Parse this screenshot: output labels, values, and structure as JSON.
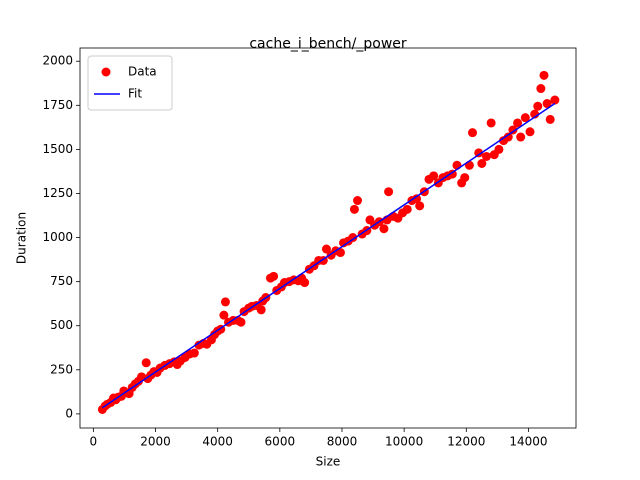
{
  "chart_data": {
    "type": "scatter",
    "title": "cache_i_bench/_power",
    "x_label": "Size",
    "y_label": "Duration",
    "xlim": [
      -430,
      15530
    ],
    "ylim": [
      -80,
      2075
    ],
    "xticks": [
      0,
      2000,
      4000,
      6000,
      8000,
      10000,
      12000,
      14000
    ],
    "yticks": [
      0,
      250,
      500,
      750,
      1000,
      1250,
      1500,
      1750,
      2000
    ],
    "legend": "upper left",
    "series": [
      {
        "name": "Data",
        "type": "scatter",
        "color": "#ff0000",
        "x": [
          290,
          380,
          450,
          560,
          650,
          720,
          800,
          900,
          980,
          1050,
          1150,
          1250,
          1350,
          1450,
          1550,
          1700,
          1750,
          1850,
          1950,
          2050,
          2150,
          2300,
          2450,
          2600,
          2700,
          2800,
          2950,
          3100,
          3250,
          3400,
          3550,
          3650,
          3800,
          3900,
          4000,
          4100,
          4200,
          4250,
          4350,
          4500,
          4650,
          4750,
          4850,
          5000,
          5100,
          5250,
          5400,
          5450,
          5550,
          5700,
          5800,
          5900,
          6050,
          6150,
          6300,
          6450,
          6600,
          6700,
          6800,
          6950,
          7100,
          7250,
          7400,
          7500,
          7650,
          7800,
          7950,
          8050,
          8200,
          8350,
          8400,
          8500,
          8650,
          8800,
          8900,
          9050,
          9200,
          9350,
          9450,
          9500,
          9650,
          9800,
          9950,
          10100,
          10250,
          10400,
          10500,
          10650,
          10800,
          10950,
          11100,
          11250,
          11400,
          11550,
          11700,
          11850,
          11950,
          12100,
          12200,
          12400,
          12500,
          12650,
          12800,
          12900,
          13050,
          13200,
          13350,
          13500,
          13650,
          13750,
          13900,
          14050,
          14200,
          14300,
          14400,
          14500,
          14600,
          14700,
          14850
        ],
        "values": [
          25,
          45,
          55,
          65,
          90,
          80,
          95,
          100,
          130,
          120,
          115,
          150,
          170,
          185,
          210,
          290,
          200,
          220,
          240,
          235,
          260,
          275,
          285,
          295,
          280,
          300,
          320,
          340,
          345,
          390,
          400,
          395,
          420,
          450,
          470,
          480,
          560,
          635,
          520,
          530,
          530,
          520,
          580,
          600,
          610,
          615,
          590,
          640,
          660,
          770,
          780,
          700,
          720,
          745,
          750,
          760,
          755,
          770,
          745,
          820,
          840,
          870,
          870,
          935,
          900,
          925,
          915,
          970,
          980,
          1000,
          1160,
          1210,
          1020,
          1040,
          1100,
          1070,
          1090,
          1050,
          1100,
          1260,
          1120,
          1110,
          1140,
          1160,
          1210,
          1220,
          1180,
          1260,
          1330,
          1350,
          1310,
          1340,
          1350,
          1360,
          1410,
          1310,
          1340,
          1410,
          1595,
          1480,
          1420,
          1460,
          1650,
          1470,
          1500,
          1550,
          1570,
          1610,
          1650,
          1570,
          1680,
          1600,
          1700,
          1745,
          1845,
          1920,
          1760,
          1670,
          1780
        ]
      },
      {
        "name": "Fit",
        "type": "line",
        "color": "#0000ff",
        "x": [
          290,
          14850
        ],
        "values": [
          35,
          1760
        ]
      }
    ]
  }
}
